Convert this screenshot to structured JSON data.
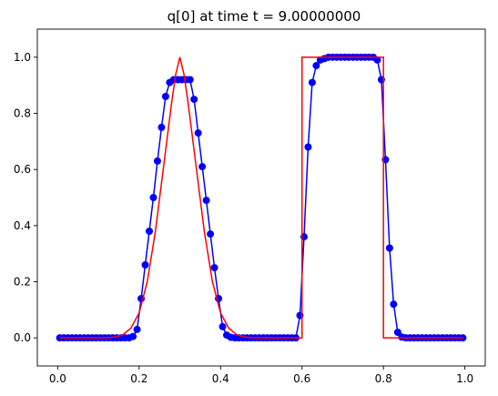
{
  "title": "q[0] at time t =     9.00000000",
  "chart_data": {
    "type": "line",
    "title": "q[0] at time t =     9.00000000",
    "xlim": [
      -0.05,
      1.05
    ],
    "ylim": [
      -0.1,
      1.1
    ],
    "xticks": [
      "0.0",
      "0.2",
      "0.4",
      "0.6",
      "0.8",
      "1.0"
    ],
    "yticks": [
      "0.0",
      "0.2",
      "0.4",
      "0.6",
      "0.8",
      "1.0"
    ],
    "grid": false,
    "legend": "none",
    "series": [
      {
        "style": "line-with-markers",
        "color": "#0000ff",
        "x": [
          0.005,
          0.015,
          0.025,
          0.035,
          0.045,
          0.055,
          0.065,
          0.075,
          0.085,
          0.095,
          0.105,
          0.115,
          0.125,
          0.135,
          0.145,
          0.155,
          0.165,
          0.175,
          0.185,
          0.195,
          0.205,
          0.215,
          0.225,
          0.235,
          0.245,
          0.255,
          0.265,
          0.275,
          0.285,
          0.295,
          0.305,
          0.315,
          0.325,
          0.335,
          0.345,
          0.355,
          0.365,
          0.375,
          0.385,
          0.395,
          0.405,
          0.415,
          0.425,
          0.435,
          0.445,
          0.455,
          0.465,
          0.475,
          0.485,
          0.495,
          0.505,
          0.515,
          0.525,
          0.535,
          0.545,
          0.555,
          0.565,
          0.575,
          0.585,
          0.595,
          0.605,
          0.615,
          0.625,
          0.635,
          0.645,
          0.655,
          0.665,
          0.675,
          0.685,
          0.695,
          0.705,
          0.715,
          0.725,
          0.735,
          0.745,
          0.755,
          0.765,
          0.775,
          0.785,
          0.795,
          0.805,
          0.815,
          0.825,
          0.835,
          0.845,
          0.855,
          0.865,
          0.875,
          0.885,
          0.895,
          0.905,
          0.915,
          0.925,
          0.935,
          0.945,
          0.955,
          0.965,
          0.975,
          0.985,
          0.995
        ],
        "y": [
          0,
          0,
          0,
          0,
          0,
          0,
          0,
          0,
          0,
          0,
          0,
          0,
          0,
          0,
          0,
          0,
          0,
          0,
          0.005,
          0.03,
          0.14,
          0.26,
          0.38,
          0.5,
          0.63,
          0.75,
          0.86,
          0.91,
          0.92,
          0.92,
          0.92,
          0.92,
          0.92,
          0.85,
          0.73,
          0.61,
          0.49,
          0.37,
          0.25,
          0.14,
          0.04,
          0.01,
          0.002,
          0,
          0,
          0,
          0,
          0,
          0,
          0,
          0,
          0,
          0,
          0,
          0,
          0,
          0,
          0,
          0,
          0.08,
          0.36,
          0.68,
          0.91,
          0.97,
          0.99,
          0.995,
          1,
          1,
          1,
          1,
          1,
          1,
          1,
          1,
          1,
          1,
          1,
          1,
          0.99,
          0.92,
          0.635,
          0.32,
          0.12,
          0.02,
          0.003,
          0,
          0,
          0,
          0,
          0,
          0,
          0,
          0,
          0,
          0,
          0,
          0,
          0,
          0,
          0
        ]
      },
      {
        "style": "line",
        "color": "#ff0000",
        "x": [
          0.005,
          0.05,
          0.1,
          0.12,
          0.14,
          0.16,
          0.18,
          0.2,
          0.22,
          0.24,
          0.26,
          0.28,
          0.29,
          0.3,
          0.31,
          0.32,
          0.34,
          0.36,
          0.38,
          0.4,
          0.42,
          0.44,
          0.46,
          0.48,
          0.5,
          0.55,
          0.6,
          0.6,
          0.8,
          0.8,
          0.9,
          0.995
        ],
        "y": [
          0,
          0,
          0,
          0.0007,
          0.003,
          0.011,
          0.035,
          0.089,
          0.2,
          0.38,
          0.61,
          0.84,
          0.94,
          1,
          0.94,
          0.84,
          0.61,
          0.38,
          0.2,
          0.089,
          0.035,
          0.011,
          0.003,
          0.0007,
          0,
          0,
          0,
          1,
          1,
          0,
          0,
          0
        ]
      }
    ]
  }
}
